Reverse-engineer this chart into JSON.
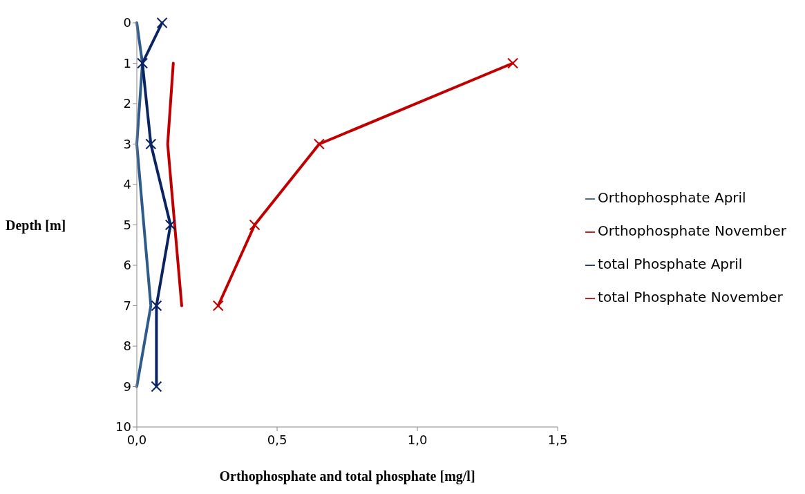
{
  "chart_data": {
    "type": "line",
    "xlabel": "Orthophosphate and total phosphate [mg/l]",
    "ylabel": "Depth [m]",
    "xlim": [
      0,
      1.5
    ],
    "xticks": [
      {
        "value": 0,
        "label": "0,0"
      },
      {
        "value": 0.5,
        "label": "0,5"
      },
      {
        "value": 1,
        "label": "1,0"
      },
      {
        "value": 1.5,
        "label": "1,5"
      }
    ],
    "ylim": [
      10,
      0
    ],
    "yticks": [
      0,
      1,
      2,
      3,
      4,
      5,
      6,
      7,
      8,
      9,
      10
    ],
    "grid": false,
    "legend": "right",
    "series": [
      {
        "name": "Orthophosphate April",
        "color": "#2e5a8c",
        "marker": "none",
        "x": [
          0,
          0.02,
          0,
          0.05,
          0
        ],
        "values": [
          0,
          1,
          3,
          7,
          9
        ]
      },
      {
        "name": "Orthophosphate November",
        "color": "#c00000",
        "marker": "none",
        "x": [
          0.13,
          0.11,
          0.16
        ],
        "values": [
          1,
          3,
          7
        ]
      },
      {
        "name": "total Phosphate April",
        "color": "#0a2463",
        "marker": "cross",
        "x": [
          0.09,
          0.02,
          0.05,
          0.12,
          0.07,
          0.07
        ],
        "values": [
          0,
          1,
          3,
          5,
          7,
          9
        ]
      },
      {
        "name": "total Phosphate November",
        "color": "#c00000",
        "marker": "cross",
        "x": [
          1.34,
          0.65,
          0.42,
          0.29
        ],
        "values": [
          1,
          3,
          5,
          7
        ]
      }
    ]
  }
}
